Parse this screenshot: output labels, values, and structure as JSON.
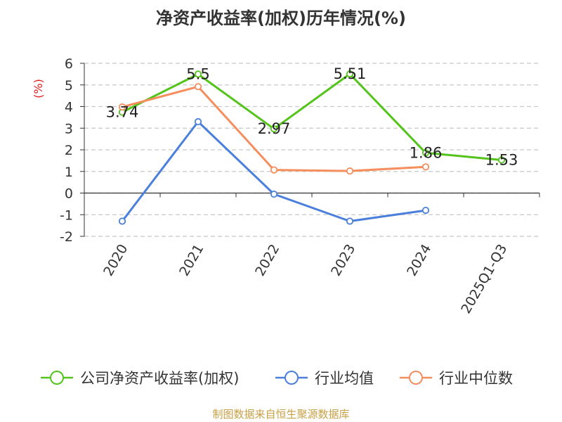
{
  "title": "净资产收益率(加权)历年情况(%)",
  "footer": "制图数据来自恒生聚源数据库",
  "chart_data": {
    "type": "line",
    "title": "净资产收益率(加权)历年情况(%)",
    "ylabel": "(%)",
    "xlabel": "",
    "categories": [
      "2020",
      "2021",
      "2022",
      "2023",
      "2024",
      "2025Q1-Q3"
    ],
    "ylim": [
      -2,
      6
    ],
    "yticks": [
      6,
      5,
      4,
      3,
      2,
      1,
      0,
      -1,
      -2
    ],
    "grid": true,
    "legend_position": "bottom",
    "series": [
      {
        "name": "公司净资产收益率(加权)",
        "color": "#52c41a",
        "values": [
          3.74,
          5.5,
          2.97,
          5.51,
          1.86,
          1.53
        ],
        "labels": [
          "3.74",
          "5.5",
          "2.97",
          "5.51",
          "1.86",
          "1.53"
        ]
      },
      {
        "name": "行业均值",
        "color": "#4a7fdc",
        "values": [
          -1.3,
          3.3,
          -0.05,
          -1.3,
          -0.8,
          null
        ]
      },
      {
        "name": "行业中位数",
        "color": "#f58d5c",
        "values": [
          3.98,
          4.92,
          1.07,
          1.02,
          1.21,
          null
        ]
      }
    ]
  }
}
